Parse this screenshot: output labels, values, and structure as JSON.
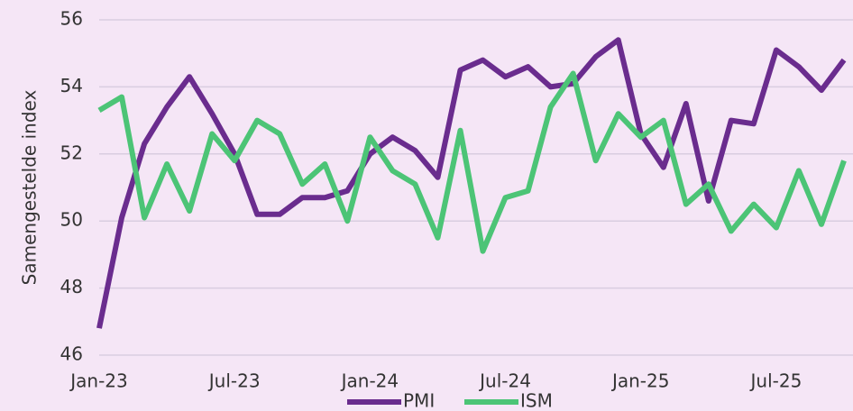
{
  "chart_data": {
    "type": "line",
    "y_label": "Samengestelde index",
    "categories": [
      "Jan-23",
      null,
      null,
      null,
      null,
      null,
      "Jul-23",
      null,
      null,
      null,
      null,
      null,
      "Jan-24",
      null,
      null,
      null,
      null,
      null,
      "Jul-24",
      null,
      null,
      null,
      null,
      null,
      "Jan-25",
      null,
      null,
      null,
      null,
      null,
      "Jul-25",
      null,
      null,
      null
    ],
    "series": [
      {
        "name": "PMI",
        "color": "#6a2c8e",
        "values": [
          46.8,
          50.1,
          52.3,
          53.4,
          54.3,
          53.2,
          52.0,
          50.2,
          50.2,
          50.7,
          50.7,
          50.9,
          52.0,
          52.5,
          52.1,
          51.3,
          54.5,
          54.8,
          54.3,
          54.6,
          54.0,
          54.1,
          54.9,
          55.4,
          52.6,
          51.6,
          53.5,
          50.6,
          53.0,
          52.9,
          55.1,
          54.6,
          53.9,
          54.8
        ]
      },
      {
        "name": "ISM",
        "color": "#4cc476",
        "values": [
          53.3,
          53.7,
          50.1,
          51.7,
          50.3,
          52.6,
          51.8,
          53.0,
          52.6,
          51.1,
          51.7,
          50.0,
          52.5,
          51.5,
          51.1,
          49.5,
          52.7,
          49.1,
          50.7,
          50.9,
          53.4,
          54.4,
          51.8,
          53.2,
          52.5,
          53.0,
          50.5,
          51.1,
          49.7,
          50.5,
          49.8,
          51.5,
          49.9,
          51.8
        ]
      }
    ],
    "ylim": [
      46,
      56
    ],
    "yticks": [
      46,
      48,
      50,
      52,
      54,
      56
    ],
    "grid": true,
    "legend": "bottom"
  }
}
